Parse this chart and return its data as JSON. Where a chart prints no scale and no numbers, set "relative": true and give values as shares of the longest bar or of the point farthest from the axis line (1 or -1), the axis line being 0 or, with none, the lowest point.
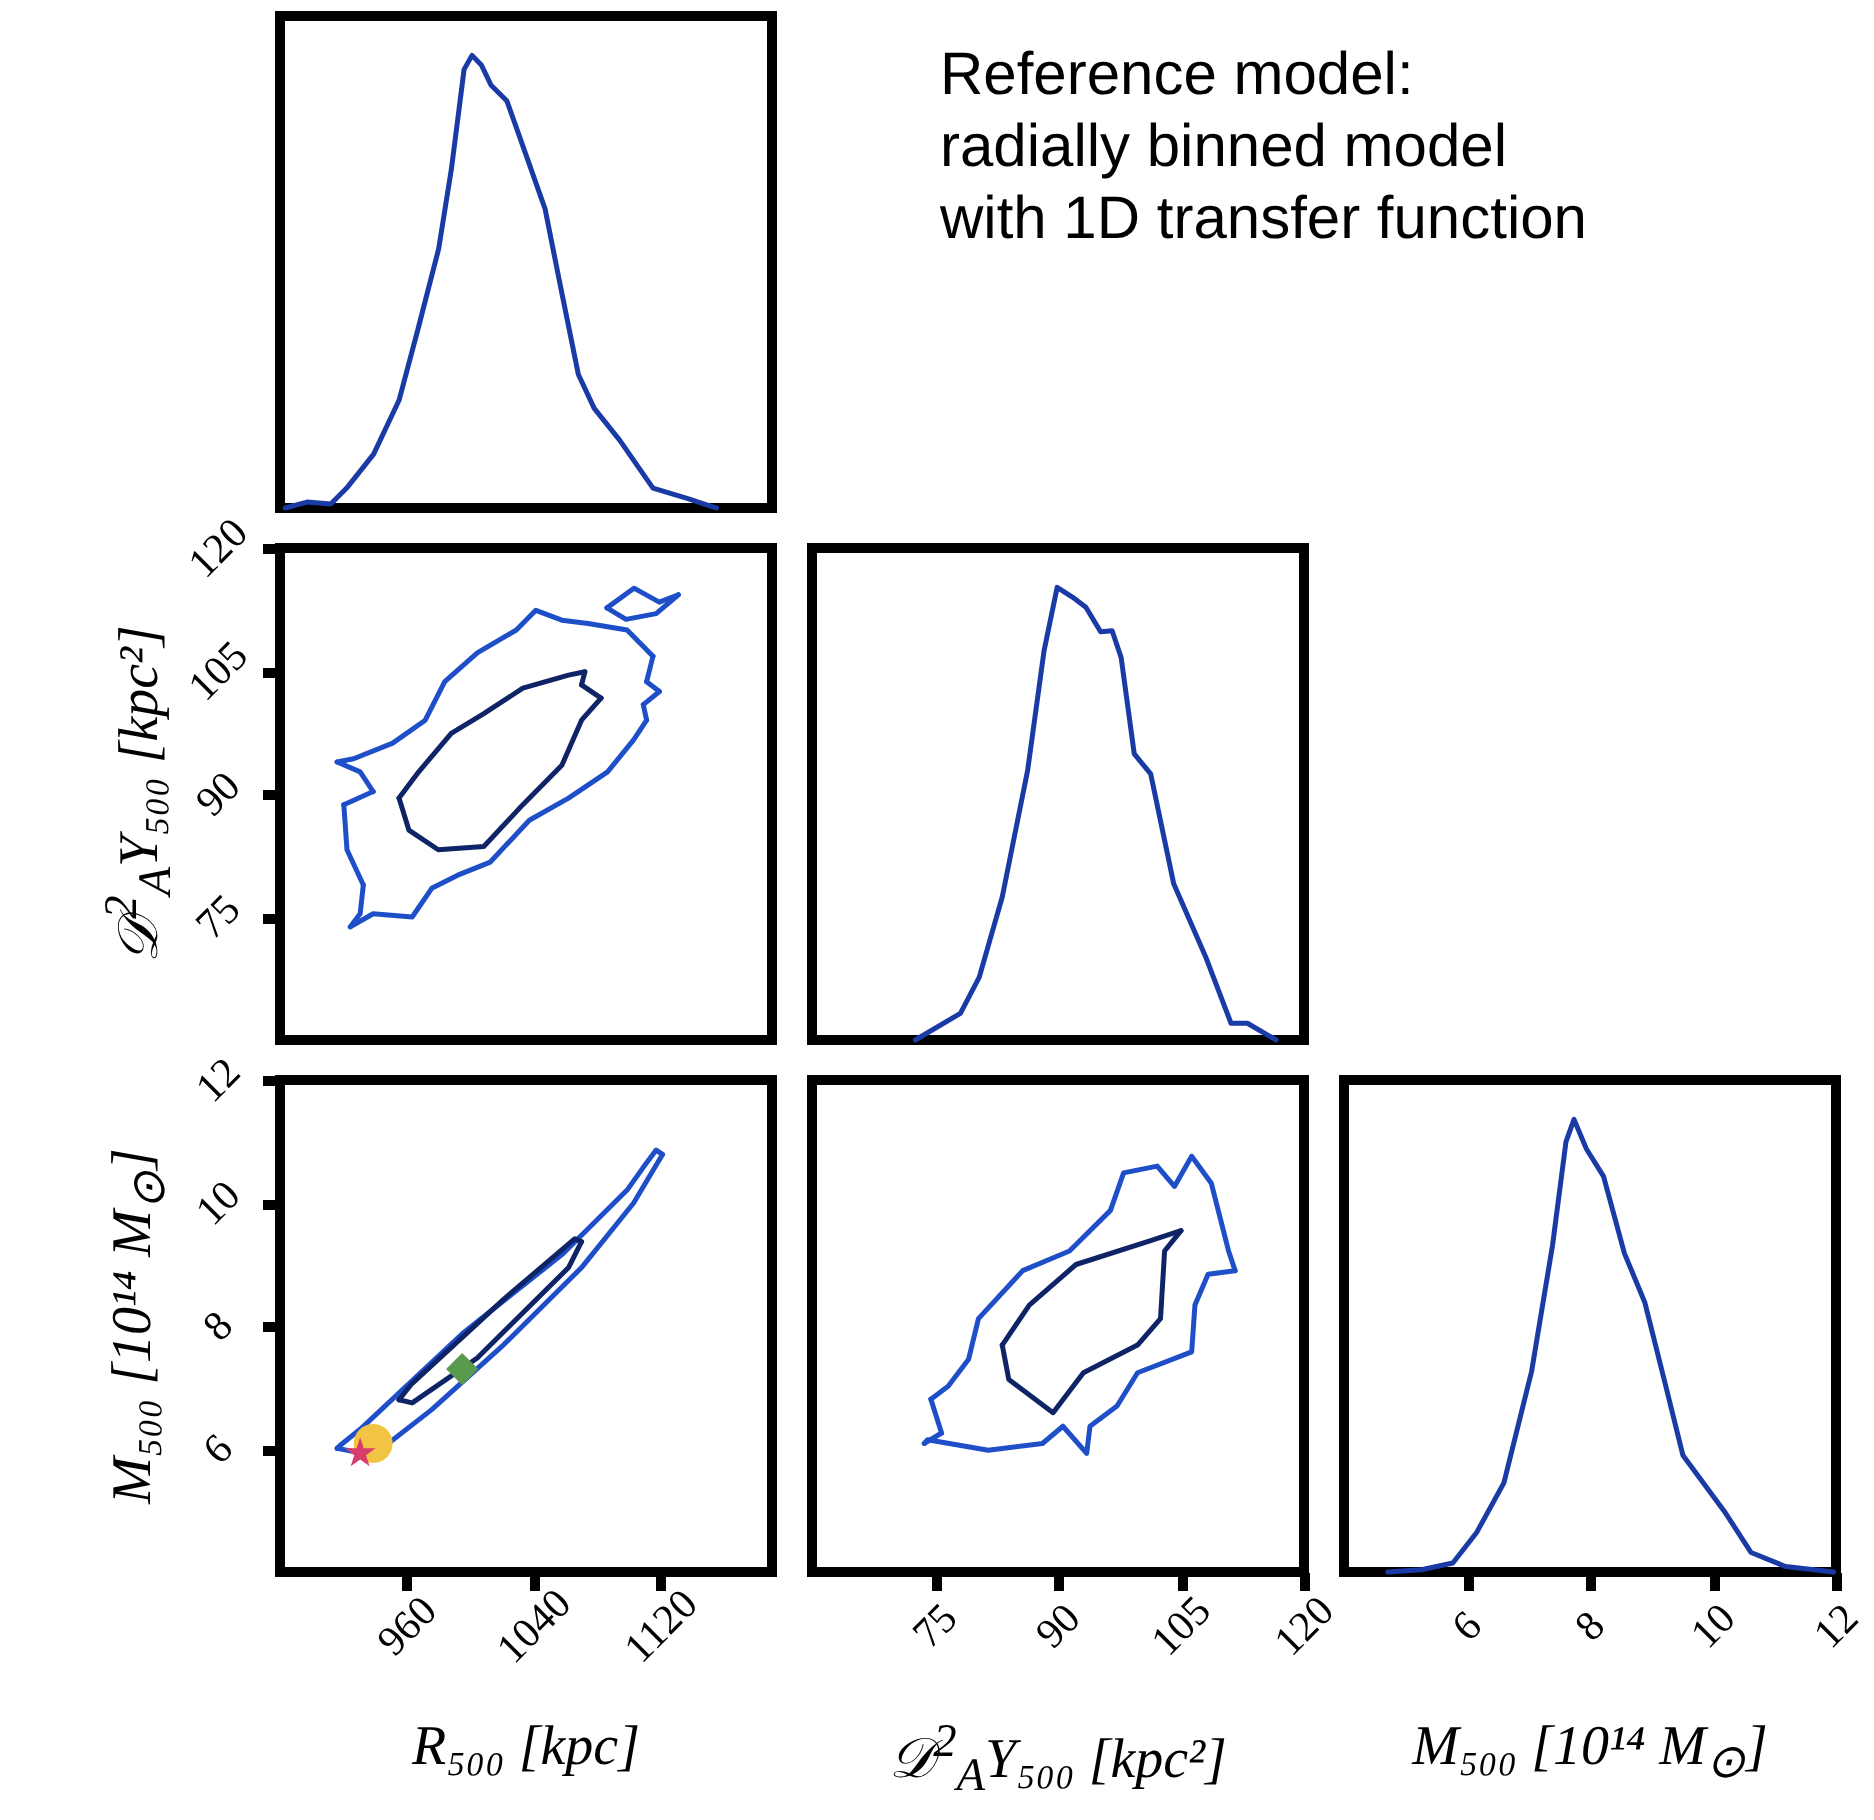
{
  "chart_data": [
    {
      "type": "line",
      "relative": true,
      "xlim": [
        880,
        1190
      ],
      "tick_labels": false,
      "color": "#1a3aa5",
      "x": [
        883.3,
        897,
        912,
        922,
        939,
        955,
        967,
        980,
        988,
        996,
        1001,
        1007,
        1013,
        1023,
        1035,
        1047,
        1057,
        1068,
        1078,
        1094,
        1115,
        1136,
        1155
      ],
      "values": [
        0,
        0.013,
        0.009,
        0.044,
        0.119,
        0.238,
        0.396,
        0.573,
        0.749,
        0.969,
        1,
        0.978,
        0.934,
        0.899,
        0.78,
        0.661,
        0.485,
        0.295,
        0.22,
        0.15,
        0.044,
        0.022,
        0
      ]
    },
    {
      "type": "other",
      "annotations": [
        "Reference model:",
        "radially binned model",
        "with 1D transfer function"
      ]
    },
    {
      "type": "line",
      "xlim": [
        880,
        1190
      ],
      "ylim": [
        60,
        120
      ],
      "yticks": [
        75,
        90,
        105,
        120
      ],
      "tick_labels": "y",
      "ylabel": "𝒟$^{2}$$_{A}$Y₅₀₀ [kpc²]",
      "series": [
        {
          "color": "#1f4fc8",
          "x": [
            916,
            930.5,
            938.7
          ],
          "values": [
            93.9,
            92.7,
            90.3
          ]
        },
        {
          "color": "#1f4fc8",
          "x": [
            920.2,
            938.7
          ],
          "values": [
            88.7,
            90.3
          ]
        },
        {
          "color": "#1f4fc8",
          "x": [
            920.2,
            922.2,
            932.5
          ],
          "values": [
            88.7,
            83.2,
            78.9
          ]
        },
        {
          "color": "#1f4fc8",
          "x": [
            924.3,
            930.5,
            932.5
          ],
          "values": [
            73.8,
            75.4,
            78.9
          ]
        },
        {
          "color": "#1f4fc8",
          "x": [
            924.3,
            938.7,
            963.3,
            975.6,
            992,
            1012.5,
            1037.1,
            1061.8,
            1086.4,
            1102.8,
            1111
          ],
          "values": [
            73.8,
            75.4,
            75,
            78.5,
            80.1,
            81.7,
            86.8,
            89.5,
            92.7,
            96.6,
            99
          ]
        },
        {
          "color": "#1f4fc8",
          "x": [
            1108.9,
            1111
          ],
          "values": [
            100.9,
            99
          ]
        },
        {
          "color": "#1f4fc8",
          "x": [
            1108.9,
            1119.1
          ],
          "values": [
            100.9,
            102.5
          ]
        },
        {
          "color": "#1f4fc8",
          "x": [
            1111,
            1119.1
          ],
          "values": [
            103.7,
            102.5
          ]
        },
        {
          "color": "#1f4fc8",
          "x": [
            1111,
            1115
          ],
          "values": [
            103.7,
            106.8
          ]
        },
        {
          "color": "#1f4fc8",
          "x": [
            916,
            926.4,
            951,
            971.5,
            983.8,
            1004.3,
            1028.9,
            1041.2,
            1057.6,
            1074.1,
            1098.7,
            1115
          ],
          "values": [
            93.9,
            94.3,
            96.2,
            99,
            103.7,
            107.2,
            110,
            112.4,
            111.2,
            110.8,
            110,
            106.8
          ]
        },
        {
          "color": "#0f2466",
          "x": [
            955,
            961.2,
            979.7,
            1008.4,
            1033,
            1057.6,
            1070,
            1082.3
          ],
          "values": [
            89.5,
            85.6,
            83.2,
            83.6,
            88.7,
            93.5,
            99,
            101.7
          ]
        },
        {
          "color": "#0f2466",
          "x": [
            1070,
            1082.3
          ],
          "values": [
            103.3,
            101.7
          ]
        },
        {
          "color": "#0f2466",
          "x": [
            1070,
            1072.1
          ],
          "values": [
            103.3,
            104.9
          ]
        },
        {
          "color": "#0f2466",
          "x": [
            955,
            967.4,
            987.9,
            1008.4,
            1033,
            1061.8,
            1072.1
          ],
          "values": [
            89.5,
            92.7,
            97.4,
            99.8,
            102.9,
            104.5,
            104.9
          ]
        },
        {
          "color": "#1f4fc8",
          "x": [
            1086,
            1103,
            1119,
            1131
          ],
          "values": [
            112.7,
            115.1,
            113.4,
            114.3
          ]
        },
        {
          "color": "#1f4fc8",
          "x": [
            1086,
            1098,
            1117,
            1131
          ],
          "values": [
            112.7,
            111.3,
            112,
            114.3
          ]
        }
      ]
    },
    {
      "type": "line",
      "relative": true,
      "xlim": [
        60,
        120
      ],
      "tick_labels": false,
      "color": "#1a3aa5",
      "x": [
        72.6,
        78.1,
        80.4,
        83.2,
        86.3,
        88.3,
        89.9,
        91.8,
        93.4,
        95.2,
        96.6,
        97.7,
        99.3,
        101.3,
        104.1,
        108,
        111.1,
        113.1,
        116.6
      ],
      "values": [
        0,
        0.059,
        0.139,
        0.316,
        0.596,
        0.86,
        1,
        0.978,
        0.956,
        0.902,
        0.904,
        0.845,
        0.632,
        0.588,
        0.346,
        0.184,
        0.037,
        0.037,
        0
      ]
    },
    {
      "type": "line",
      "xlim": [
        880,
        1190
      ],
      "xticks": [
        960,
        1040,
        1120
      ],
      "ylim": [
        4,
        12
      ],
      "yticks": [
        6,
        8,
        10,
        12
      ],
      "xlabel": "R₅₀₀ [kpc]",
      "ylabel": "M₅₀₀ [10¹⁴ M$_{⊙}$]",
      "series": [
        {
          "color": "#1f4fc8",
          "x": [
            916,
            918,
            930.5,
            996,
            1057.6,
            1098.7,
            1108.9,
            1117,
            1121
          ],
          "values": [
            6.01,
            6.06,
            6.32,
            7.9,
            9.16,
            10.21,
            10.58,
            10.86,
            10.79
          ]
        },
        {
          "color": "#1f4fc8",
          "x": [
            916,
            926.4,
            946.8,
            975.6,
            1020.7,
            1070,
            1102.8,
            1115,
            1121
          ],
          "values": [
            6.01,
            5.96,
            6.06,
            6.64,
            7.69,
            8.95,
            10,
            10.53,
            10.79
          ]
        },
        {
          "color": "#0f2466",
          "x": [
            955,
            963,
            1020.7,
            1065.8,
            1070
          ],
          "values": [
            6.8,
            7.06,
            8.43,
            9.42,
            9.37
          ]
        },
        {
          "color": "#0f2466",
          "x": [
            955,
            963.3,
            1004.3,
            1061.8,
            1070
          ],
          "values": [
            6.8,
            6.75,
            7.48,
            8.95,
            9.37
          ]
        },
        {
          "type": "scatter",
          "marker": "circle",
          "color": "#f2c443",
          "x": [
            938.7
          ],
          "values": [
            6.09
          ]
        },
        {
          "type": "scatter",
          "marker": "star",
          "color": "#d63d6a",
          "x": [
            930.5
          ],
          "values": [
            5.93
          ]
        },
        {
          "type": "scatter",
          "marker": "diamond",
          "color": "#5a9a4f",
          "x": [
            994.8
          ],
          "values": [
            7.3
          ]
        }
      ]
    },
    {
      "type": "line",
      "xlim": [
        60,
        120
      ],
      "xticks": [
        75,
        90,
        105,
        120
      ],
      "ylim": [
        4,
        12
      ],
      "tick_labels": "x",
      "xlabel": "𝒟$^{2}$$_{A}$Y₅₀₀ [kpc²]",
      "series": [
        {
          "color": "#1f4fc8",
          "x": [
            73.7,
            75.8
          ],
          "values": [
            6.09,
            6.26
          ]
        },
        {
          "color": "#1f4fc8",
          "x": [
            74.5,
            75.8
          ],
          "values": [
            6.81,
            6.26
          ]
        },
        {
          "color": "#1f4fc8",
          "x": [
            74.5,
            76.6,
            79.1,
            80.3,
            85.7,
            91.4,
            96.4,
            98,
            102.1,
            104.2,
            106.3,
            108.7,
            110.8,
            111.6
          ],
          "values": [
            6.81,
            7.02,
            7.46,
            8.12,
            8.9,
            9.22,
            9.88,
            10.49,
            10.6,
            10.27,
            10.76,
            10.32,
            9.22,
            8.9
          ]
        },
        {
          "color": "#1f4fc8",
          "x": [
            73.7,
            74.1,
            81.5,
            88.1,
            90.6,
            93.5,
            93.9,
            97.2,
            99.7,
            106.3,
            106.7,
            108.3,
            111.6
          ],
          "values": [
            6.09,
            6.15,
            5.98,
            6.09,
            6.37,
            5.93,
            6.37,
            6.7,
            7.24,
            7.58,
            8.34,
            8.84,
            8.9
          ]
        },
        {
          "color": "#0f2466",
          "x": [
            83.2,
            84,
            89.4,
            93.1,
            99.7,
            102.5,
            103,
            105
          ],
          "values": [
            7.69,
            7.13,
            6.59,
            7.24,
            7.69,
            8.12,
            9.22,
            9.55
          ]
        },
        {
          "color": "#0f2466",
          "x": [
            83.2,
            86.5,
            92.2,
            101.3,
            105
          ],
          "values": [
            7.69,
            8.34,
            9,
            9.39,
            9.55
          ]
        }
      ]
    },
    {
      "type": "line",
      "relative": true,
      "xlim": [
        4,
        12
      ],
      "xticks": [
        6,
        8,
        10,
        12
      ],
      "tick_labels": "x",
      "xlabel": "M₅₀₀ [10¹⁴ M$_{⊙}$]",
      "color": "#1a3aa5",
      "x": [
        4.71,
        5.26,
        5.77,
        6.16,
        6.6,
        7.05,
        7.39,
        7.61,
        7.74,
        7.94,
        8.22,
        8.56,
        8.89,
        9.23,
        9.51,
        10.18,
        10.62,
        11.18,
        11.96
      ],
      "values": [
        0,
        0.005,
        0.02,
        0.088,
        0.197,
        0.443,
        0.721,
        0.951,
        1,
        0.935,
        0.874,
        0.704,
        0.596,
        0.412,
        0.258,
        0.135,
        0.043,
        0.012,
        0
      ]
    }
  ]
}
